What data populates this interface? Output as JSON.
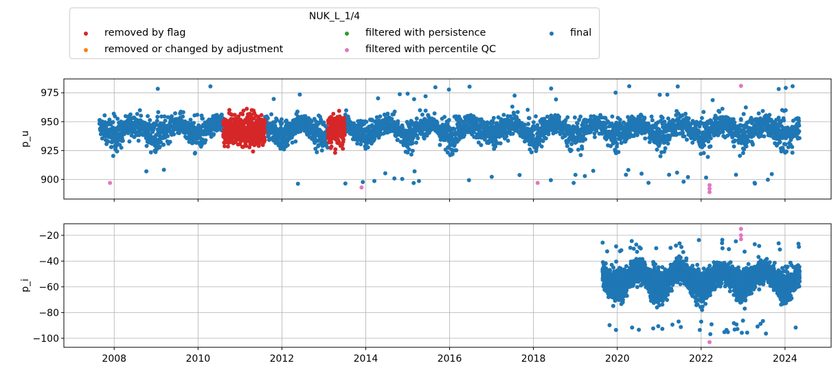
{
  "legend": {
    "title": "NUK_L_1/4",
    "items": [
      {
        "label": "removed by flag",
        "color": "#d62728"
      },
      {
        "label": "removed or changed by adjustment",
        "color": "#ff7f0e"
      },
      {
        "label": "filtered with persistence",
        "color": "#2ca02c"
      },
      {
        "label": "filtered with percentile QC",
        "color": "#e377c2"
      },
      {
        "label": "final",
        "color": "#1f77b4"
      }
    ]
  },
  "chart_data": [
    {
      "type": "scatter",
      "ylabel": "p_u",
      "xlabel": "",
      "xlim": [
        2006.8,
        2025.1
      ],
      "ylim": [
        883,
        987
      ],
      "yticks": [
        900,
        925,
        950,
        975
      ],
      "xticks": [
        2008,
        2010,
        2012,
        2014,
        2016,
        2018,
        2020,
        2022,
        2024
      ],
      "grid": true,
      "series": [
        {
          "name": "removed by flag",
          "color": "#d62728",
          "segments": [
            {
              "x_start": 2010.6,
              "x_end": 2011.6,
              "mean": 943,
              "min": 909,
              "max": 975
            },
            {
              "x_start": 2013.1,
              "x_end": 2013.5,
              "mean": 943,
              "min": 907,
              "max": 972
            }
          ]
        },
        {
          "name": "filtered with percentile QC",
          "color": "#e377c2",
          "points": [
            {
              "x": 2007.9,
              "y": 897
            },
            {
              "x": 2013.9,
              "y": 893
            },
            {
              "x": 2018.1,
              "y": 897
            },
            {
              "x": 2022.2,
              "y": 889
            },
            {
              "x": 2022.2,
              "y": 892
            },
            {
              "x": 2022.2,
              "y": 895
            },
            {
              "x": 2022.95,
              "y": 981
            }
          ]
        },
        {
          "name": "final",
          "color": "#1f77b4",
          "extent": {
            "x_start": 2007.65,
            "x_end": 2024.35
          },
          "seasonal_means": {
            "winter": 938,
            "summer": 948
          },
          "range": {
            "min": 896,
            "max": 981
          }
        }
      ]
    },
    {
      "type": "scatter",
      "ylabel": "p_i",
      "xlabel": "",
      "xlim": [
        2006.8,
        2025.1
      ],
      "ylim": [
        -107,
        -11
      ],
      "yticks": [
        -100,
        -80,
        -60,
        -40,
        -20
      ],
      "xticks": [
        2008,
        2010,
        2012,
        2014,
        2016,
        2018,
        2020,
        2022,
        2024
      ],
      "xticklabels": [
        "2008",
        "2010",
        "2012",
        "2014",
        "2016",
        "2018",
        "2020",
        "2022",
        "2024"
      ],
      "grid": true,
      "series": [
        {
          "name": "filtered with percentile QC",
          "color": "#e377c2",
          "points": [
            {
              "x": 2022.95,
              "y": -15
            },
            {
              "x": 2022.95,
              "y": -20
            },
            {
              "x": 2022.95,
              "y": -23
            },
            {
              "x": 2022.2,
              "y": -103
            }
          ]
        },
        {
          "name": "final",
          "color": "#1f77b4",
          "extent": {
            "x_start": 2019.65,
            "x_end": 2024.35
          },
          "seasonal_means": {
            "winter": -60,
            "summer": -48
          },
          "range": {
            "min": -97,
            "max": -23
          }
        }
      ]
    }
  ]
}
